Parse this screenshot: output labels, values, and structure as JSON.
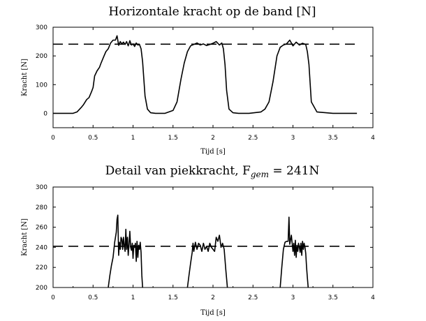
{
  "chart_data": [
    {
      "type": "line",
      "title": "Horizontale kracht op de band [N]",
      "xlabel": "Tijd [s]",
      "ylabel": "Kracht [N]",
      "xlim": [
        0,
        4
      ],
      "ylim": [
        -50,
        300
      ],
      "xticks": [
        0,
        0.5,
        1,
        1.5,
        2,
        2.5,
        3,
        3.5,
        4
      ],
      "xtick_labels": [
        "0",
        "0.5",
        "1",
        "1.5",
        "2",
        "2.5",
        "3",
        "3.5",
        "4"
      ],
      "yticks": [
        0,
        100,
        200,
        300
      ],
      "ytick_labels": [
        "0",
        "100",
        "200",
        "300"
      ],
      "reference_line": {
        "y": 241,
        "style": "dashed"
      },
      "series": [
        {
          "x": [
            0,
            0.25,
            0.3,
            0.35,
            0.38,
            0.42,
            0.45,
            0.48,
            0.5,
            0.52,
            0.55,
            0.58,
            0.6,
            0.63,
            0.66,
            0.69,
            0.72,
            0.75,
            0.78,
            0.8,
            0.82,
            0.84,
            0.86,
            0.88,
            0.9,
            0.92,
            0.94,
            0.96,
            0.98,
            1.0,
            1.02,
            1.04,
            1.06,
            1.08,
            1.1,
            1.12,
            1.15,
            1.18,
            1.22,
            1.28,
            1.4,
            1.5,
            1.55,
            1.6,
            1.64,
            1.68,
            1.72,
            1.76,
            1.8,
            1.84,
            1.88,
            1.92,
            1.96,
            2.0,
            2.04,
            2.08,
            2.11,
            2.13,
            2.15,
            2.17,
            2.2,
            2.25,
            2.32,
            2.45,
            2.6,
            2.65,
            2.7,
            2.75,
            2.8,
            2.84,
            2.88,
            2.92,
            2.96,
            3.0,
            3.04,
            3.08,
            3.12,
            3.16,
            3.18,
            3.2,
            3.23,
            3.3,
            3.5,
            3.8
          ],
          "y": [
            0,
            0,
            5,
            20,
            30,
            48,
            55,
            75,
            90,
            130,
            148,
            160,
            175,
            195,
            215,
            225,
            245,
            255,
            255,
            270,
            237,
            250,
            242,
            248,
            240,
            250,
            235,
            253,
            238,
            242,
            233,
            245,
            238,
            240,
            225,
            180,
            60,
            15,
            2,
            0,
            0,
            10,
            40,
            120,
            175,
            215,
            235,
            240,
            245,
            238,
            242,
            236,
            240,
            244,
            250,
            238,
            245,
            225,
            170,
            80,
            15,
            2,
            0,
            0,
            5,
            15,
            40,
            110,
            200,
            230,
            238,
            242,
            255,
            235,
            248,
            238,
            244,
            240,
            215,
            170,
            40,
            5,
            0,
            0
          ]
        }
      ]
    },
    {
      "type": "line",
      "title": "Detail van piekkracht, F",
      "title_subscript": "gem",
      "title_suffix": " = 241N",
      "xlabel": "Tijd [s]",
      "ylabel": "Kracht [N]",
      "xlim": [
        0,
        4
      ],
      "ylim": [
        200,
        300
      ],
      "xticks": [
        0,
        0.5,
        1,
        1.5,
        2,
        2.5,
        3,
        3.5,
        4
      ],
      "xtick_labels": [
        "0",
        "0.5",
        "1",
        "1.5",
        "2",
        "2.5",
        "3",
        "3.5",
        "4"
      ],
      "yticks": [
        200,
        220,
        240,
        260,
        280,
        300
      ],
      "ytick_labels": [
        "200",
        "220",
        "240",
        "260",
        "280",
        "300"
      ],
      "reference_line": {
        "y": 241,
        "style": "dashed"
      },
      "series": [
        {
          "segments": [
            {
              "x": [
                0.69,
                0.71,
                0.73,
                0.75,
                0.77,
                0.79,
                0.8,
                0.81,
                0.82,
                0.83,
                0.84,
                0.85,
                0.86,
                0.87,
                0.88,
                0.89,
                0.9,
                0.91,
                0.92,
                0.93,
                0.94,
                0.95,
                0.96,
                0.97,
                0.98,
                0.99,
                1.0,
                1.01,
                1.02,
                1.03,
                1.04,
                1.05,
                1.06,
                1.07,
                1.08,
                1.09,
                1.1,
                1.11,
                1.12
              ],
              "y": [
                200,
                212,
                222,
                230,
                245,
                255,
                268,
                272,
                232,
                245,
                238,
                250,
                248,
                238,
                250,
                242,
                236,
                258,
                238,
                250,
                232,
                243,
                256,
                240,
                237,
                244,
                229,
                242,
                240,
                244,
                226,
                246,
                230,
                242,
                238,
                245,
                235,
                212,
                200
              ]
            },
            {
              "x": [
                1.68,
                1.7,
                1.72,
                1.74,
                1.75,
                1.76,
                1.78,
                1.8,
                1.82,
                1.84,
                1.86,
                1.88,
                1.9,
                1.92,
                1.94,
                1.96,
                1.98,
                2.0,
                2.02,
                2.04,
                2.06,
                2.08,
                2.1,
                2.12,
                2.14,
                2.16,
                2.18
              ],
              "y": [
                200,
                212,
                224,
                235,
                244,
                236,
                245,
                238,
                244,
                242,
                236,
                244,
                238,
                241,
                236,
                244,
                240,
                238,
                236,
                250,
                246,
                252,
                240,
                244,
                238,
                218,
                200
              ]
            },
            {
              "x": [
                2.84,
                2.86,
                2.88,
                2.9,
                2.92,
                2.94,
                2.95,
                2.96,
                2.98,
                3.0,
                3.01,
                3.02,
                3.03,
                3.04,
                3.05,
                3.06,
                3.07,
                3.08,
                3.09,
                3.1,
                3.11,
                3.12,
                3.13,
                3.14,
                3.15,
                3.16,
                3.17,
                3.18,
                3.19
              ],
              "y": [
                200,
                220,
                238,
                245,
                246,
                246,
                270,
                243,
                252,
                236,
                244,
                232,
                247,
                230,
                242,
                236,
                244,
                240,
                235,
                244,
                232,
                246,
                238,
                244,
                240,
                234,
                220,
                210,
                200
              ]
            }
          ]
        }
      ]
    }
  ]
}
